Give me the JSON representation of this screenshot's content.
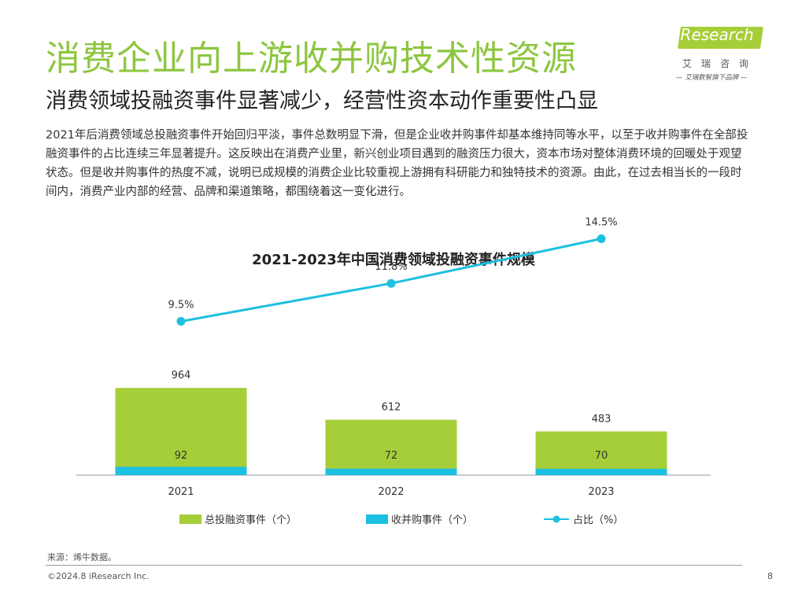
{
  "header": {
    "title": "消费企业向上游收并购技术性资源",
    "subtitle": "消费领域投融资事件显著减少，经营性资本动作重要性凸显",
    "body": "2021年后消费领域总投融资事件开始回归平淡，事件总数明显下滑，但是企业收并购事件却基本维持同等水平，以至于收并购事件在全部投融资事件的占比连续三年显著提升。这反映出在消费产业里，新兴创业项目遇到的融资压力很大，资本市场对整体消费环境的回暖处于观望状态。但是收并购事件的热度不减，说明已成规模的消费企业比较重视上游拥有科研能力和独特技术的资源。由此，在过去相当长的一段时间内，消费产业内部的经营、品牌和渠道策略，都围绕着这一变化进行。"
  },
  "logo": {
    "brand": "iResearch",
    "cn": "艾瑞咨询",
    "slogan": "— 艾瑞数智旗下品牌 —"
  },
  "chart_data": {
    "type": "bar",
    "title": "2021-2023年中国消费领域投融资事件规模",
    "categories": [
      "2021",
      "2022",
      "2023"
    ],
    "series": [
      {
        "name": "总投融资事件（个）",
        "type": "bar",
        "values": [
          964,
          612,
          483
        ],
        "color": "#a6ce39"
      },
      {
        "name": "收并购事件（个）",
        "type": "bar",
        "values": [
          92,
          72,
          70
        ],
        "color": "#1cc0e0"
      },
      {
        "name": "占比（%）",
        "type": "line",
        "values": [
          9.5,
          11.8,
          14.5
        ],
        "labels": [
          "9.5%",
          "11.8%",
          "14.5%"
        ],
        "color": "#1cc0e0"
      }
    ],
    "bar_ylim": [
      0,
      1000
    ],
    "line_ylim": [
      0,
      20
    ]
  },
  "footer": {
    "source": "来源：烯牛数据。",
    "copyright": "©2024.8 iResearch Inc.",
    "page": "8"
  }
}
